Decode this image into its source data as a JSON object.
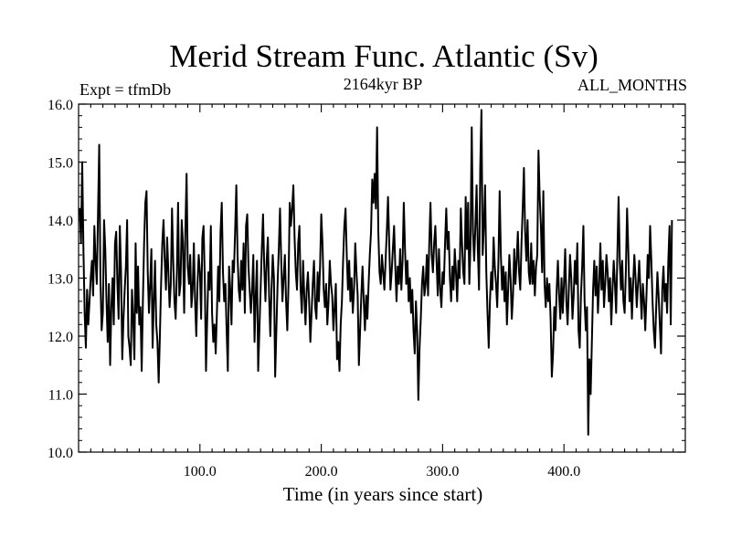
{
  "chart_data": {
    "type": "line",
    "title": "Merid Stream Func. Atlantic (Sv)",
    "subtitle_left": "Expt = tfmDb",
    "subtitle_center": "2164kyr BP",
    "subtitle_right": "ALL_MONTHS",
    "xlabel": "Time (in years since start)",
    "ylabel": "",
    "xlim": [
      0,
      500
    ],
    "ylim": [
      10.0,
      16.0
    ],
    "x_ticks": [
      100,
      200,
      300,
      400
    ],
    "x_tick_labels": [
      "100.0",
      "200.0",
      "300.0",
      "400.0"
    ],
    "y_ticks": [
      10,
      11,
      12,
      13,
      14,
      15,
      16
    ],
    "y_tick_labels": [
      "10.0",
      "11.0",
      "12.0",
      "13.0",
      "14.0",
      "15.0",
      "16.0"
    ],
    "grid": false,
    "line_color": "#000000",
    "series": [
      {
        "name": "Merid Stream Func. Atlantic",
        "x_start": 1,
        "x_step": 1,
        "values": [
          14.2,
          13.6,
          15.0,
          13.5,
          12.4,
          11.8,
          12.8,
          12.2,
          12.6,
          13.0,
          13.3,
          12.7,
          13.9,
          13.3,
          12.9,
          14.1,
          15.3,
          13.0,
          12.1,
          12.4,
          14.0,
          13.5,
          12.6,
          11.9,
          12.9,
          11.5,
          12.5,
          13.0,
          12.2,
          13.6,
          13.8,
          12.9,
          12.3,
          13.9,
          13.1,
          11.6,
          12.3,
          12.8,
          13.2,
          14.0,
          12.0,
          11.8,
          11.5,
          12.8,
          12.3,
          11.6,
          13.6,
          12.4,
          13.2,
          12.2,
          12.5,
          11.4,
          12.6,
          13.6,
          14.3,
          14.5,
          13.1,
          12.4,
          12.9,
          13.5,
          11.8,
          12.6,
          13.3,
          12.2,
          11.9,
          11.2,
          12.0,
          12.9,
          13.6,
          14.0,
          13.3,
          12.8,
          13.7,
          13.1,
          12.5,
          12.9,
          14.2,
          13.3,
          12.6,
          12.3,
          13.1,
          14.3,
          12.7,
          12.9,
          14.0,
          13.6,
          12.4,
          13.8,
          14.8,
          13.2,
          12.9,
          13.4,
          12.5,
          12.8,
          13.6,
          12.6,
          12.0,
          12.9,
          13.4,
          13.1,
          12.3,
          13.7,
          13.9,
          13.0,
          11.4,
          12.3,
          13.1,
          12.8,
          13.9,
          12.4,
          11.9,
          12.2,
          11.7,
          12.4,
          13.2,
          12.6,
          13.8,
          14.3,
          13.1,
          12.6,
          12.9,
          12.1,
          11.4,
          13.2,
          12.8,
          12.2,
          13.3,
          13.1,
          13.8,
          14.6,
          13.4,
          12.8,
          12.6,
          13.3,
          12.8,
          13.6,
          12.4,
          13.9,
          14.1,
          13.2,
          12.8,
          12.4,
          12.8,
          13.4,
          11.9,
          12.7,
          13.3,
          11.4,
          12.1,
          12.8,
          13.5,
          14.1,
          13.2,
          12.6,
          13.3,
          13.7,
          12.7,
          12.0,
          12.8,
          13.4,
          13.0,
          11.3,
          12.1,
          12.9,
          13.5,
          14.2,
          13.3,
          12.6,
          13.0,
          13.4,
          12.6,
          12.1,
          12.9,
          14.3,
          13.9,
          14.2,
          14.6,
          13.7,
          13.1,
          12.8,
          13.6,
          13.9,
          12.8,
          12.4,
          13.3,
          12.7,
          12.2,
          12.8,
          13.1,
          12.6,
          11.9,
          12.4,
          12.9,
          13.3,
          12.5,
          12.3,
          13.1,
          12.6,
          13.2,
          14.1,
          13.6,
          12.8,
          12.5,
          12.9,
          12.2,
          12.6,
          13.3,
          12.9,
          12.7,
          12.1,
          12.5,
          12.9,
          11.6,
          11.9,
          11.4,
          12.2,
          12.6,
          13.3,
          13.9,
          14.2,
          13.4,
          12.8,
          13.3,
          12.6,
          13.0,
          12.4,
          12.8,
          13.6,
          13.1,
          12.7,
          11.5,
          12.1,
          12.7,
          13.2,
          12.6,
          12.1,
          12.7,
          12.3,
          12.9,
          13.4,
          13.8,
          14.7,
          14.3,
          14.8,
          14.2,
          15.6,
          13.8,
          13.1,
          12.9,
          13.4,
          13.1,
          12.8,
          13.3,
          13.8,
          14.4,
          13.6,
          12.8,
          13.1,
          13.5,
          13.9,
          13.2,
          12.6,
          13.2,
          12.9,
          13.5,
          12.8,
          13.3,
          14.3,
          13.5,
          12.9,
          13.3,
          12.6,
          13.0,
          12.4,
          12.8,
          12.1,
          11.7,
          12.6,
          12.1,
          10.9,
          11.8,
          12.3,
          12.9,
          13.2,
          12.7,
          12.9,
          13.4,
          12.7,
          13.6,
          14.3,
          13.4,
          13.1,
          13.6,
          13.9,
          13.3,
          12.7,
          13.5,
          12.8,
          12.5,
          13.1,
          12.9,
          13.6,
          14.2,
          13.5,
          13.8,
          13.0,
          12.6,
          13.2,
          12.8,
          13.5,
          13.1,
          12.6,
          13.3,
          13.0,
          14.2,
          13.6,
          13.1,
          12.9,
          14.4,
          13.5,
          14.3,
          12.9,
          13.6,
          15.6,
          13.8,
          13.3,
          13.9,
          14.6,
          13.5,
          12.8,
          14.9,
          15.9,
          13.4,
          13.9,
          14.6,
          13.1,
          12.4,
          11.8,
          12.6,
          13.1,
          12.8,
          13.7,
          13.2,
          12.9,
          12.5,
          13.3,
          14.5,
          13.4,
          12.8,
          13.2,
          12.6,
          13.1,
          12.2,
          12.8,
          13.4,
          13.0,
          12.3,
          12.7,
          13.5,
          12.9,
          13.3,
          13.8,
          13.1,
          12.8,
          13.6,
          14.2,
          14.9,
          13.8,
          13.3,
          14.0,
          13.1,
          12.9,
          13.6,
          12.9,
          13.3,
          12.7,
          13.2,
          13.4,
          15.2,
          14.4,
          13.9,
          13.1,
          14.5,
          12.9,
          12.5,
          13.0,
          12.6,
          12.9,
          12.3,
          11.3,
          11.7,
          12.5,
          12.1,
          12.8,
          13.3,
          12.7,
          12.3,
          13.0,
          12.4,
          12.9,
          13.5,
          12.6,
          12.2,
          12.8,
          13.4,
          13.0,
          12.3,
          12.7,
          13.3,
          12.9,
          13.6,
          12.1,
          11.8,
          12.7,
          13.2,
          13.9,
          12.6,
          12.1,
          12.5,
          10.3,
          11.6,
          11.0,
          11.9,
          12.8,
          13.3,
          12.7,
          13.2,
          12.4,
          12.9,
          13.6,
          12.8,
          13.3,
          12.5,
          12.9,
          13.4,
          13.1,
          12.6,
          13.0,
          12.2,
          12.8,
          13.3,
          12.9,
          12.4,
          13.4,
          14.4,
          13.3,
          12.8,
          13.3,
          12.6,
          12.4,
          13.1,
          14.2,
          13.5,
          12.6,
          13.0,
          12.3,
          12.9,
          13.4,
          13.0,
          12.5,
          12.9,
          13.3,
          12.8,
          12.3,
          12.9,
          12.6,
          12.1,
          12.7,
          13.4,
          13.0,
          13.9,
          13.3,
          12.6,
          12.1,
          11.8,
          12.5,
          13.1,
          12.7,
          12.2,
          11.7,
          12.8,
          13.2,
          12.6,
          12.9,
          12.4,
          13.3,
          13.9,
          12.2,
          14.0
        ]
      }
    ]
  }
}
